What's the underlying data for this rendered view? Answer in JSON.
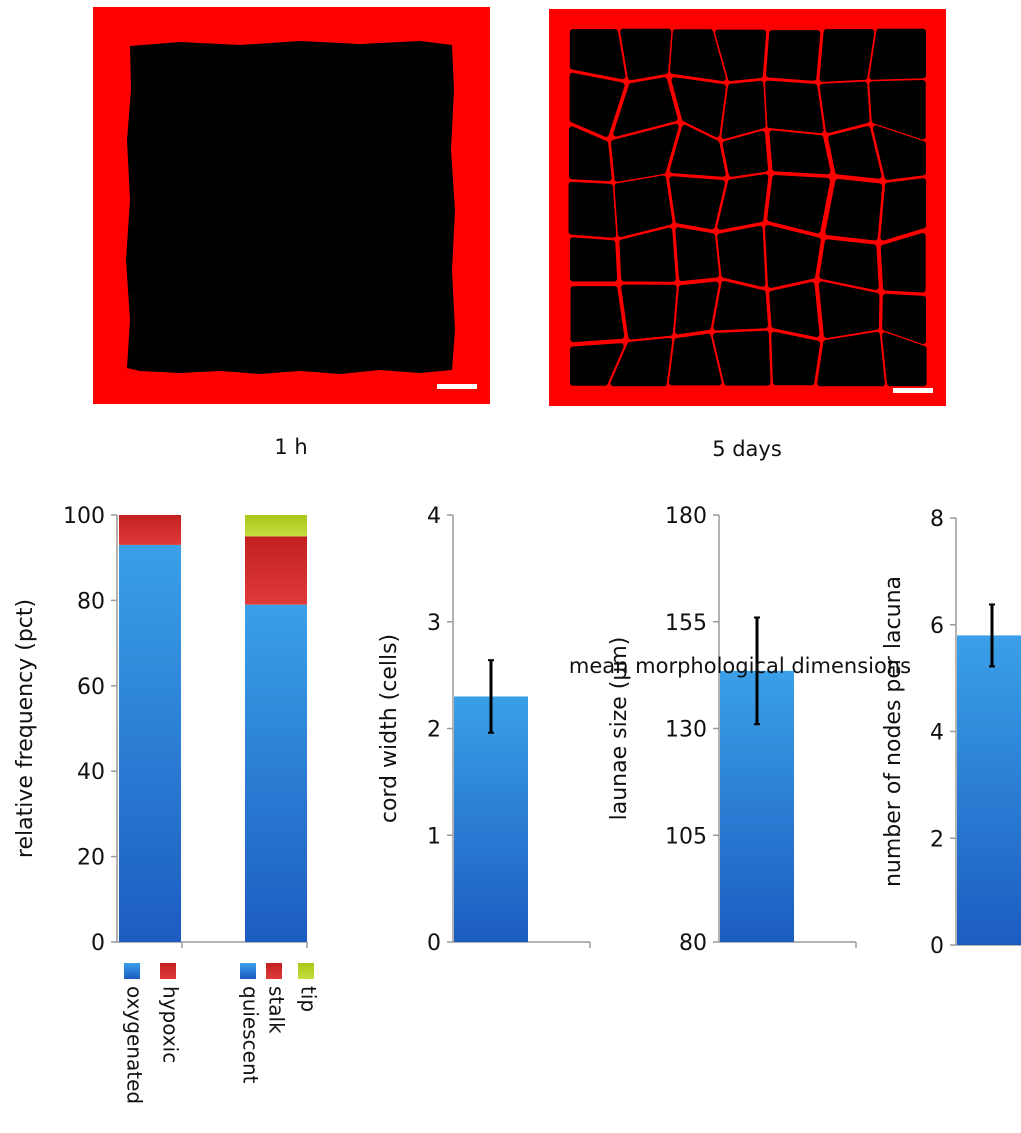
{
  "panels": [
    {
      "caption": "1 h"
    },
    {
      "caption": "5 days"
    }
  ],
  "colors": {
    "panel_background": "#ff0000",
    "lacunae": "#000000",
    "scale_bar": "#ffffff",
    "blue_bar": "#2a7fd4",
    "red_segment": "#d42a2a",
    "green_segment": "#b5cf1e",
    "error_bar": "#000000"
  },
  "footer_label": "mean morphological dimensions",
  "chart_data": [
    {
      "type": "bar",
      "stacked": true,
      "ylabel": "relative frequency (pct)",
      "ylim": [
        0,
        100
      ],
      "yticks": [
        0,
        20,
        40,
        60,
        80,
        100
      ],
      "categories": [
        "",
        ""
      ],
      "series": [
        {
          "name": "oxygenated / quiescent",
          "color": "#2a7fd4",
          "values": [
            93,
            79
          ]
        },
        {
          "name": "hypoxic / stalk",
          "color": "#d42a2a",
          "values": [
            7,
            16
          ]
        },
        {
          "name": "tip",
          "color": "#b5cf1e",
          "values": [
            0,
            5
          ]
        }
      ],
      "legend": [
        {
          "group": 0,
          "entries": [
            {
              "label": "oxygenated",
              "color": "#2a7fd4"
            },
            {
              "label": "hypoxic",
              "color": "#d42a2a"
            }
          ]
        },
        {
          "group": 1,
          "entries": [
            {
              "label": "quiescent",
              "color": "#2a7fd4"
            },
            {
              "label": "stalk",
              "color": "#d42a2a"
            },
            {
              "label": "tip",
              "color": "#b5cf1e"
            }
          ]
        }
      ]
    },
    {
      "type": "bar",
      "ylabel": "cord width (cells)",
      "ylim": [
        0,
        4
      ],
      "yticks": [
        0,
        1,
        2,
        3,
        4
      ],
      "values": [
        2.3
      ],
      "error": [
        0.34
      ]
    },
    {
      "type": "bar",
      "ylabel": "launae size (µm)",
      "ylim": [
        80,
        180
      ],
      "yticks": [
        80,
        105,
        130,
        155,
        180
      ],
      "values": [
        143.5
      ],
      "error": [
        12.5
      ]
    },
    {
      "type": "bar",
      "ylabel": "number of nodes per lacuna",
      "ylim": [
        0,
        8
      ],
      "yticks": [
        0,
        2,
        4,
        6,
        8
      ],
      "values": [
        5.8
      ],
      "error": [
        0.58
      ]
    }
  ]
}
